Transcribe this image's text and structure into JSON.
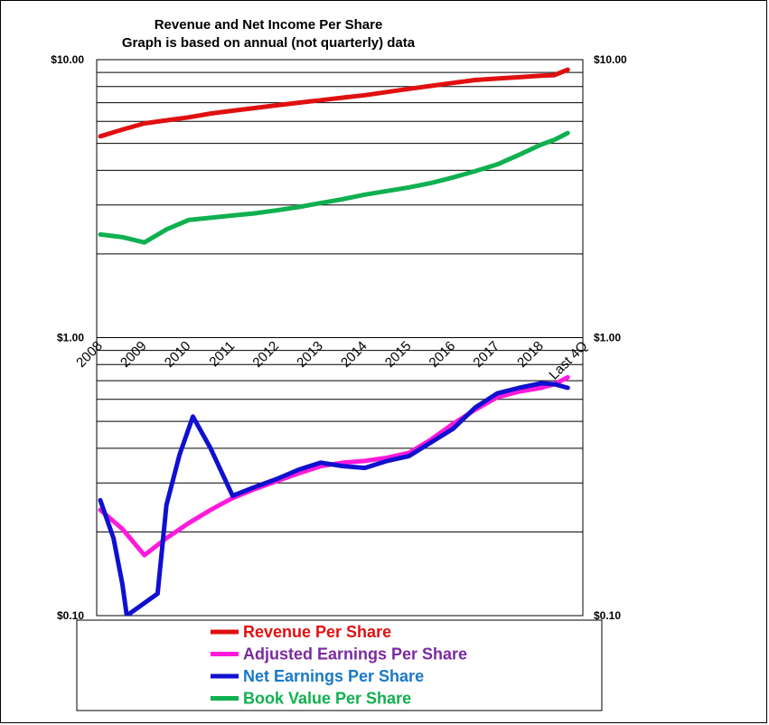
{
  "chart_data": {
    "type": "line",
    "title_lines": [
      "Revenue  and Net Income  Per Share",
      "Graph is based  on annual  (not quarterly) data"
    ],
    "y_scale": "log",
    "ylim": [
      0.1,
      10
    ],
    "y_ticks": [
      {
        "value": 10,
        "label": "$10.00"
      },
      {
        "value": 1,
        "label": "$1.00"
      },
      {
        "value": 0.1,
        "label": "$0.10"
      }
    ],
    "grid": true,
    "categories": [
      "2008",
      "2009",
      "2010",
      "2011",
      "2012",
      "2013",
      "2014",
      "2015",
      "2016",
      "2017",
      "2018",
      "Last 4Q"
    ],
    "legend_position": "bottom",
    "series": [
      {
        "name": "Revenue Per Share",
        "color": "#e01010",
        "text_color": "#e01010",
        "x": [
          0,
          0.5,
          1,
          1.5,
          2,
          2.5,
          3,
          3.5,
          4,
          4.5,
          5,
          5.5,
          6,
          6.5,
          7,
          7.5,
          8,
          8.5,
          9,
          9.5,
          10,
          10.3,
          10.6
        ],
        "y": [
          5.3,
          5.6,
          5.9,
          6.05,
          6.2,
          6.4,
          6.55,
          6.7,
          6.85,
          7.0,
          7.15,
          7.3,
          7.45,
          7.65,
          7.85,
          8.05,
          8.25,
          8.45,
          8.55,
          8.65,
          8.75,
          8.8,
          9.2
        ]
      },
      {
        "name": "Adjusted Earnings Per Share",
        "color": "#ff1adb",
        "text_color": "#7a2aa0",
        "x": [
          0,
          0.5,
          1,
          1.5,
          2,
          2.5,
          3,
          3.5,
          4,
          4.5,
          5,
          5.5,
          6,
          6.5,
          7,
          7.5,
          8,
          8.5,
          9,
          9.5,
          10,
          10.3,
          10.6
        ],
        "y": [
          0.24,
          0.205,
          0.165,
          0.19,
          0.215,
          0.24,
          0.265,
          0.285,
          0.305,
          0.325,
          0.345,
          0.355,
          0.36,
          0.37,
          0.385,
          0.43,
          0.49,
          0.55,
          0.61,
          0.64,
          0.66,
          0.68,
          0.72
        ]
      },
      {
        "name": "Net Earnings Per Share",
        "color": "#1010d0",
        "text_color": "#1a78c8",
        "x": [
          0,
          0.3,
          0.5,
          0.6,
          1.3,
          1.5,
          1.8,
          2.1,
          2.5,
          3.0,
          3.5,
          4,
          4.5,
          5,
          5.5,
          6,
          6.5,
          7,
          7.5,
          8,
          8.5,
          9,
          9.5,
          10,
          10.3,
          10.6
        ],
        "y": [
          0.26,
          0.19,
          0.13,
          0.1,
          0.12,
          0.25,
          0.38,
          0.52,
          0.4,
          0.27,
          0.29,
          0.31,
          0.335,
          0.355,
          0.345,
          0.34,
          0.36,
          0.375,
          0.42,
          0.47,
          0.56,
          0.63,
          0.66,
          0.685,
          0.68,
          0.66
        ]
      },
      {
        "name": "Book Value Per Share",
        "color": "#10b050",
        "text_color": "#10b050",
        "x": [
          0,
          0.5,
          1,
          1.5,
          2,
          2.5,
          3,
          3.5,
          4,
          4.5,
          5,
          5.5,
          6,
          6.5,
          7,
          7.5,
          8,
          8.5,
          9,
          9.5,
          10,
          10.3,
          10.6
        ],
        "y": [
          2.35,
          2.3,
          2.2,
          2.45,
          2.65,
          2.7,
          2.75,
          2.8,
          2.87,
          2.95,
          3.05,
          3.15,
          3.27,
          3.37,
          3.47,
          3.6,
          3.77,
          3.97,
          4.2,
          4.55,
          4.95,
          5.15,
          5.45
        ]
      }
    ]
  }
}
